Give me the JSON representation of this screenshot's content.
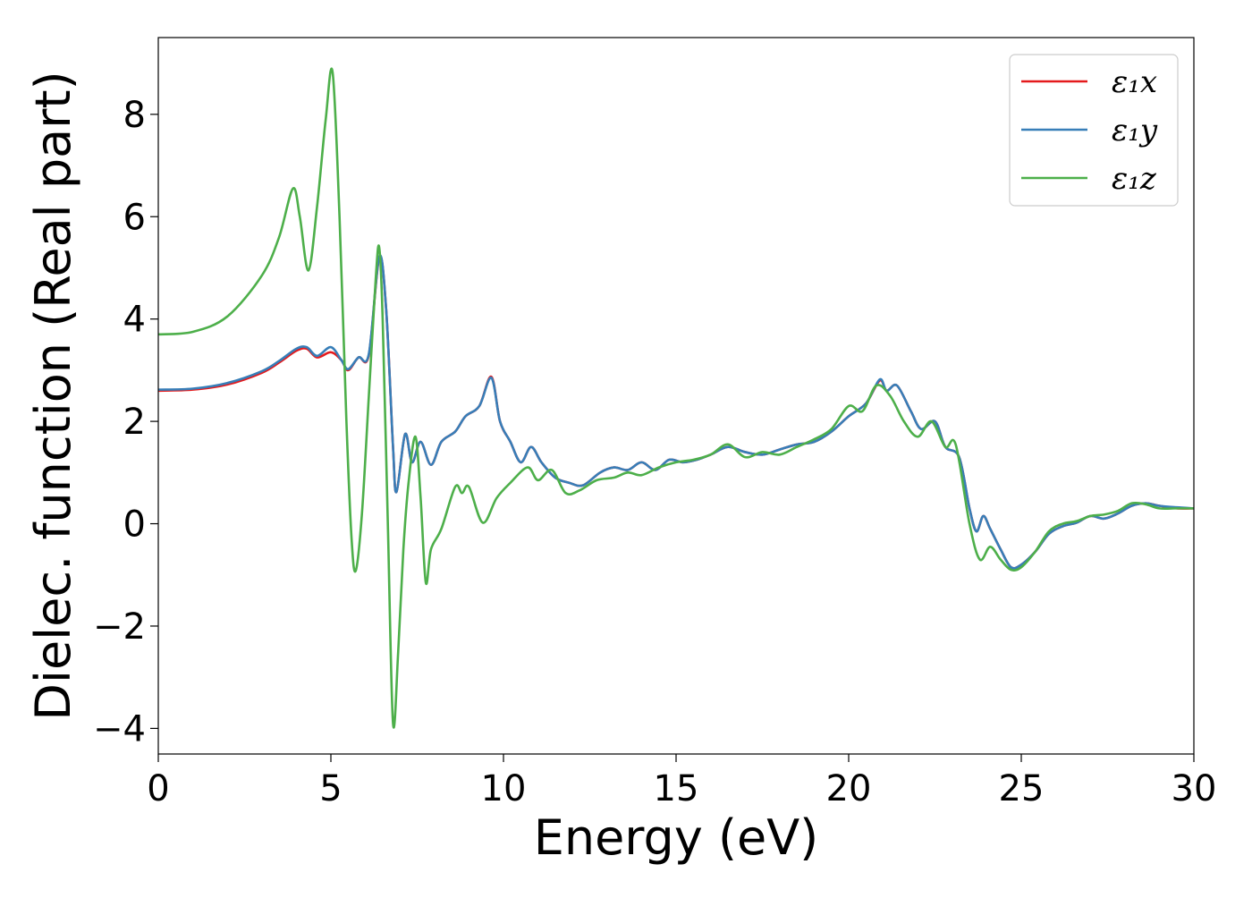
{
  "chart_data": {
    "type": "line",
    "title": "",
    "xlabel": "Energy (eV)",
    "ylabel": "Dielec. function (Real part)",
    "xlim": [
      0,
      30
    ],
    "ylim": [
      -4.5,
      9.5
    ],
    "xticks": [
      0,
      5,
      10,
      15,
      20,
      25,
      30
    ],
    "yticks": [
      -4,
      -2,
      0,
      2,
      4,
      6,
      8
    ],
    "xtick_labels": [
      "0",
      "5",
      "10",
      "15",
      "20",
      "25",
      "30"
    ],
    "ytick_labels": [
      "−4",
      "−2",
      "0",
      "2",
      "4",
      "6",
      "8"
    ],
    "grid": false,
    "legend_position": "top-right",
    "series": [
      {
        "name": "ε₁x",
        "color": "#e41a1c",
        "points": [
          [
            0,
            2.6
          ],
          [
            1,
            2.62
          ],
          [
            2,
            2.72
          ],
          [
            3,
            2.95
          ],
          [
            3.5,
            3.15
          ],
          [
            4.0,
            3.38
          ],
          [
            4.3,
            3.42
          ],
          [
            4.6,
            3.25
          ],
          [
            5.0,
            3.35
          ],
          [
            5.3,
            3.2
          ],
          [
            5.5,
            3.0
          ],
          [
            5.8,
            3.25
          ],
          [
            6.1,
            3.3
          ],
          [
            6.4,
            5.2
          ],
          [
            6.6,
            4.2
          ],
          [
            6.8,
            1.5
          ],
          [
            6.9,
            0.62
          ],
          [
            7.15,
            1.75
          ],
          [
            7.35,
            1.2
          ],
          [
            7.6,
            1.6
          ],
          [
            7.9,
            1.15
          ],
          [
            8.2,
            1.6
          ],
          [
            8.6,
            1.8
          ],
          [
            8.9,
            2.1
          ],
          [
            9.3,
            2.3
          ],
          [
            9.65,
            2.87
          ],
          [
            9.9,
            2.0
          ],
          [
            10.2,
            1.6
          ],
          [
            10.5,
            1.2
          ],
          [
            10.8,
            1.5
          ],
          [
            11.1,
            1.2
          ],
          [
            11.5,
            0.9
          ],
          [
            11.9,
            0.8
          ],
          [
            12.3,
            0.75
          ],
          [
            12.8,
            1.0
          ],
          [
            13.2,
            1.1
          ],
          [
            13.6,
            1.05
          ],
          [
            14.0,
            1.2
          ],
          [
            14.4,
            1.05
          ],
          [
            14.8,
            1.25
          ],
          [
            15.2,
            1.2
          ],
          [
            15.6,
            1.25
          ],
          [
            16.0,
            1.35
          ],
          [
            16.5,
            1.5
          ],
          [
            17.0,
            1.4
          ],
          [
            17.5,
            1.35
          ],
          [
            18.0,
            1.45
          ],
          [
            18.5,
            1.55
          ],
          [
            19.0,
            1.6
          ],
          [
            19.5,
            1.8
          ],
          [
            20.0,
            2.1
          ],
          [
            20.5,
            2.35
          ],
          [
            20.9,
            2.8
          ],
          [
            21.1,
            2.6
          ],
          [
            21.4,
            2.7
          ],
          [
            21.8,
            2.2
          ],
          [
            22.1,
            1.85
          ],
          [
            22.5,
            2.0
          ],
          [
            22.8,
            1.5
          ],
          [
            23.2,
            1.3
          ],
          [
            23.5,
            0.3
          ],
          [
            23.7,
            -0.15
          ],
          [
            23.9,
            0.15
          ],
          [
            24.1,
            -0.1
          ],
          [
            24.4,
            -0.5
          ],
          [
            24.7,
            -0.85
          ],
          [
            25.0,
            -0.8
          ],
          [
            25.4,
            -0.55
          ],
          [
            25.8,
            -0.2
          ],
          [
            26.2,
            -0.05
          ],
          [
            26.6,
            0.02
          ],
          [
            27.0,
            0.15
          ],
          [
            27.4,
            0.1
          ],
          [
            27.8,
            0.2
          ],
          [
            28.2,
            0.35
          ],
          [
            28.6,
            0.4
          ],
          [
            29.0,
            0.35
          ],
          [
            29.5,
            0.3
          ],
          [
            30,
            0.3
          ]
        ]
      },
      {
        "name": "ε₁y",
        "color": "#377eb8",
        "points": [
          [
            0,
            2.62
          ],
          [
            1,
            2.64
          ],
          [
            2,
            2.75
          ],
          [
            3,
            2.98
          ],
          [
            3.5,
            3.18
          ],
          [
            4.0,
            3.42
          ],
          [
            4.3,
            3.45
          ],
          [
            4.6,
            3.28
          ],
          [
            5.0,
            3.45
          ],
          [
            5.3,
            3.2
          ],
          [
            5.5,
            3.02
          ],
          [
            5.8,
            3.25
          ],
          [
            6.1,
            3.32
          ],
          [
            6.4,
            5.22
          ],
          [
            6.6,
            4.2
          ],
          [
            6.8,
            1.5
          ],
          [
            6.9,
            0.62
          ],
          [
            7.15,
            1.75
          ],
          [
            7.35,
            1.2
          ],
          [
            7.6,
            1.6
          ],
          [
            7.9,
            1.15
          ],
          [
            8.2,
            1.6
          ],
          [
            8.6,
            1.8
          ],
          [
            8.9,
            2.1
          ],
          [
            9.3,
            2.3
          ],
          [
            9.65,
            2.85
          ],
          [
            9.9,
            2.0
          ],
          [
            10.2,
            1.6
          ],
          [
            10.5,
            1.2
          ],
          [
            10.8,
            1.5
          ],
          [
            11.1,
            1.2
          ],
          [
            11.5,
            0.9
          ],
          [
            11.9,
            0.8
          ],
          [
            12.3,
            0.75
          ],
          [
            12.8,
            1.0
          ],
          [
            13.2,
            1.1
          ],
          [
            13.6,
            1.05
          ],
          [
            14.0,
            1.2
          ],
          [
            14.4,
            1.05
          ],
          [
            14.8,
            1.25
          ],
          [
            15.2,
            1.2
          ],
          [
            15.6,
            1.25
          ],
          [
            16.0,
            1.35
          ],
          [
            16.5,
            1.5
          ],
          [
            17.0,
            1.4
          ],
          [
            17.5,
            1.35
          ],
          [
            18.0,
            1.45
          ],
          [
            18.5,
            1.55
          ],
          [
            19.0,
            1.6
          ],
          [
            19.5,
            1.8
          ],
          [
            20.0,
            2.1
          ],
          [
            20.5,
            2.35
          ],
          [
            20.9,
            2.82
          ],
          [
            21.1,
            2.6
          ],
          [
            21.4,
            2.7
          ],
          [
            21.8,
            2.2
          ],
          [
            22.1,
            1.85
          ],
          [
            22.5,
            2.0
          ],
          [
            22.8,
            1.5
          ],
          [
            23.2,
            1.3
          ],
          [
            23.5,
            0.3
          ],
          [
            23.7,
            -0.15
          ],
          [
            23.9,
            0.15
          ],
          [
            24.1,
            -0.1
          ],
          [
            24.4,
            -0.5
          ],
          [
            24.7,
            -0.85
          ],
          [
            25.0,
            -0.8
          ],
          [
            25.4,
            -0.55
          ],
          [
            25.8,
            -0.2
          ],
          [
            26.2,
            -0.05
          ],
          [
            26.6,
            0.02
          ],
          [
            27.0,
            0.15
          ],
          [
            27.4,
            0.1
          ],
          [
            27.8,
            0.2
          ],
          [
            28.2,
            0.35
          ],
          [
            28.6,
            0.4
          ],
          [
            29.0,
            0.35
          ],
          [
            29.5,
            0.32
          ],
          [
            30,
            0.3
          ]
        ]
      },
      {
        "name": "ε₁z",
        "color": "#4daf4a",
        "points": [
          [
            0,
            3.7
          ],
          [
            1,
            3.75
          ],
          [
            2,
            4.05
          ],
          [
            3,
            4.85
          ],
          [
            3.5,
            5.6
          ],
          [
            3.9,
            6.55
          ],
          [
            4.1,
            6.0
          ],
          [
            4.35,
            4.95
          ],
          [
            4.6,
            6.2
          ],
          [
            4.85,
            7.9
          ],
          [
            5.05,
            8.82
          ],
          [
            5.25,
            6.0
          ],
          [
            5.45,
            2.0
          ],
          [
            5.6,
            -0.3
          ],
          [
            5.72,
            -0.92
          ],
          [
            5.9,
            0.2
          ],
          [
            6.1,
            2.5
          ],
          [
            6.3,
            4.8
          ],
          [
            6.4,
            5.4
          ],
          [
            6.5,
            4.0
          ],
          [
            6.65,
            0.0
          ],
          [
            6.8,
            -3.9
          ],
          [
            6.95,
            -2.5
          ],
          [
            7.1,
            -0.5
          ],
          [
            7.25,
            0.8
          ],
          [
            7.45,
            1.7
          ],
          [
            7.6,
            0.5
          ],
          [
            7.75,
            -1.15
          ],
          [
            7.9,
            -0.5
          ],
          [
            8.2,
            -0.1
          ],
          [
            8.6,
            0.72
          ],
          [
            8.8,
            0.6
          ],
          [
            9.0,
            0.72
          ],
          [
            9.4,
            0.02
          ],
          [
            9.8,
            0.5
          ],
          [
            10.2,
            0.8
          ],
          [
            10.7,
            1.1
          ],
          [
            11.0,
            0.85
          ],
          [
            11.4,
            1.05
          ],
          [
            11.8,
            0.6
          ],
          [
            12.2,
            0.65
          ],
          [
            12.7,
            0.85
          ],
          [
            13.2,
            0.9
          ],
          [
            13.6,
            1.0
          ],
          [
            14.0,
            0.95
          ],
          [
            14.5,
            1.1
          ],
          [
            15.0,
            1.2
          ],
          [
            15.5,
            1.25
          ],
          [
            16.0,
            1.35
          ],
          [
            16.5,
            1.55
          ],
          [
            17.0,
            1.3
          ],
          [
            17.5,
            1.4
          ],
          [
            18.0,
            1.35
          ],
          [
            18.5,
            1.5
          ],
          [
            19.0,
            1.65
          ],
          [
            19.5,
            1.85
          ],
          [
            20.0,
            2.3
          ],
          [
            20.4,
            2.2
          ],
          [
            20.8,
            2.7
          ],
          [
            21.2,
            2.5
          ],
          [
            21.6,
            2.0
          ],
          [
            22.0,
            1.7
          ],
          [
            22.4,
            2.0
          ],
          [
            22.8,
            1.5
          ],
          [
            23.1,
            1.55
          ],
          [
            23.5,
            0.0
          ],
          [
            23.8,
            -0.7
          ],
          [
            24.1,
            -0.45
          ],
          [
            24.4,
            -0.7
          ],
          [
            24.7,
            -0.9
          ],
          [
            25.0,
            -0.85
          ],
          [
            25.4,
            -0.55
          ],
          [
            25.8,
            -0.15
          ],
          [
            26.2,
            0.0
          ],
          [
            26.6,
            0.05
          ],
          [
            27.0,
            0.15
          ],
          [
            27.4,
            0.18
          ],
          [
            27.8,
            0.25
          ],
          [
            28.2,
            0.4
          ],
          [
            28.6,
            0.38
          ],
          [
            29.0,
            0.3
          ],
          [
            29.5,
            0.3
          ],
          [
            30,
            0.3
          ]
        ]
      }
    ]
  }
}
